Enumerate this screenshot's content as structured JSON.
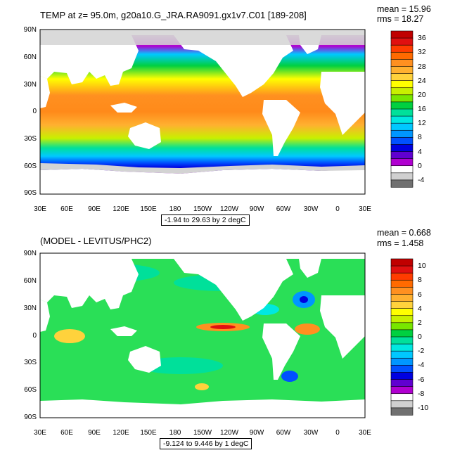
{
  "panels": [
    {
      "title": "TEMP at z=  95.0m, g20a10.G_JRA.RA9091.gx1v7.C01 [189-208]",
      "mean": "mean = 15.96",
      "rms": "rms = 18.27",
      "caption": "-1.94 to 29.63 by 2 degC",
      "lat_labels": [
        "90N",
        "60N",
        "30N",
        "0",
        "30S",
        "60S",
        "90S"
      ],
      "lon_labels": [
        "30E",
        "60E",
        "90E",
        "120E",
        "150E",
        "180",
        "150W",
        "120W",
        "90W",
        "60W",
        "30W",
        "0",
        "30E"
      ],
      "colorbar_labels": [
        "36",
        "32",
        "28",
        "24",
        "20",
        "16",
        "12",
        "8",
        "4",
        "0",
        "-4"
      ],
      "colorbar_colors": [
        "#c00000",
        "#e01010",
        "#ff3c00",
        "#ff6a00",
        "#ff9020",
        "#ffb030",
        "#ffd23c",
        "#ffff00",
        "#c8f000",
        "#78e600",
        "#00d040",
        "#00e09a",
        "#00e8e0",
        "#00c8ff",
        "#0096ff",
        "#0050ff",
        "#0000e0",
        "#6000d0",
        "#b000d0",
        "#ffffff",
        "#d0d0d0",
        "#707070"
      ]
    },
    {
      "title": "(MODEL - LEVITUS/PHC2)",
      "mean": "mean = 0.668",
      "rms": "rms = 1.458",
      "caption": "-9.124 to 9.446 by 1 degC",
      "lat_labels": [
        "90N",
        "60N",
        "30N",
        "0",
        "30S",
        "60S",
        "90S"
      ],
      "lon_labels": [
        "30E",
        "60E",
        "90E",
        "120E",
        "150E",
        "180",
        "150W",
        "120W",
        "90W",
        "60W",
        "30W",
        "0",
        "30E"
      ],
      "colorbar_labels": [
        "10",
        "8",
        "6",
        "4",
        "2",
        "0",
        "-2",
        "-4",
        "-6",
        "-8",
        "-10"
      ],
      "colorbar_colors": [
        "#c00000",
        "#e01010",
        "#ff3c00",
        "#ff6a00",
        "#ff9020",
        "#ffb030",
        "#ffd23c",
        "#ffff00",
        "#c8f000",
        "#78e600",
        "#00d040",
        "#00e09a",
        "#00e8e0",
        "#00c8ff",
        "#0096ff",
        "#0050ff",
        "#0000e0",
        "#6000d0",
        "#b000d0",
        "#ffffff",
        "#d0d0d0",
        "#707070"
      ]
    }
  ],
  "colors": {
    "land": "#ffffff",
    "ice": "#d3d3d3",
    "ocean_top_warm": "#ff9020",
    "ocean_bottom_base": "#2adf57"
  }
}
